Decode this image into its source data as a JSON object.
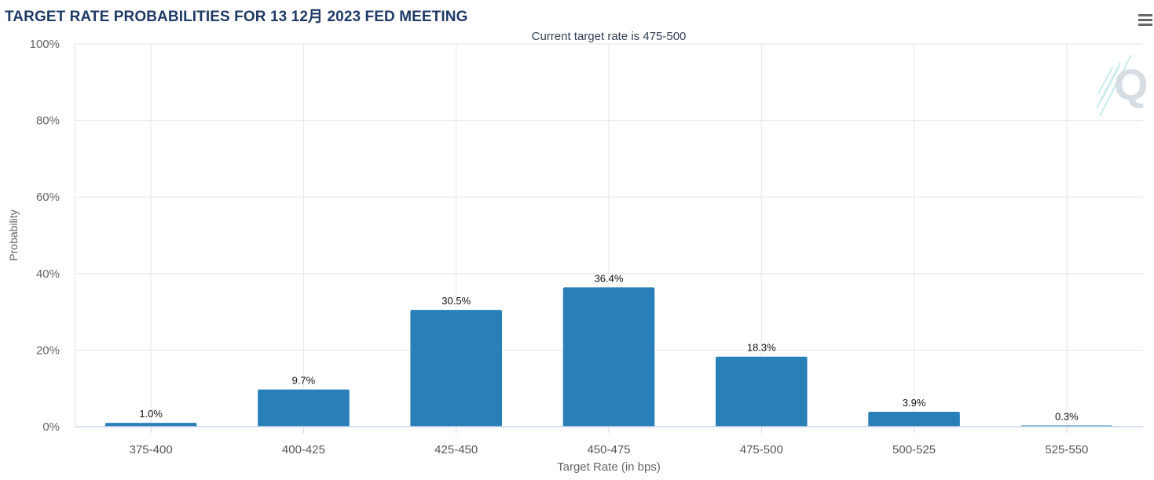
{
  "header": {
    "title": "TARGET RATE PROBABILITIES FOR 13 12月 2023 FED MEETING",
    "menu_icon": "hamburger-menu-icon"
  },
  "logo": {
    "letter": "Q"
  },
  "chart_data": {
    "type": "bar",
    "title": "TARGET RATE PROBABILITIES FOR 13 12月 2023 FED MEETING",
    "subtitle": "Current target rate is 475-500",
    "xlabel": "Target Rate (in bps)",
    "ylabel": "Probability",
    "categories": [
      "375-400",
      "400-425",
      "425-450",
      "450-475",
      "475-500",
      "500-525",
      "525-550"
    ],
    "values": [
      1.0,
      9.7,
      30.5,
      36.4,
      18.3,
      3.9,
      0.3
    ],
    "data_labels": [
      "1.0%",
      "9.7%",
      "30.5%",
      "36.4%",
      "18.3%",
      "3.9%",
      "0.3%"
    ],
    "ylim": [
      0,
      100
    ],
    "yticks": [
      0,
      20,
      40,
      60,
      80,
      100
    ],
    "ytick_labels": [
      "0%",
      "20%",
      "40%",
      "60%",
      "80%",
      "100%"
    ],
    "grid": true,
    "bar_color": "#2980b9"
  }
}
